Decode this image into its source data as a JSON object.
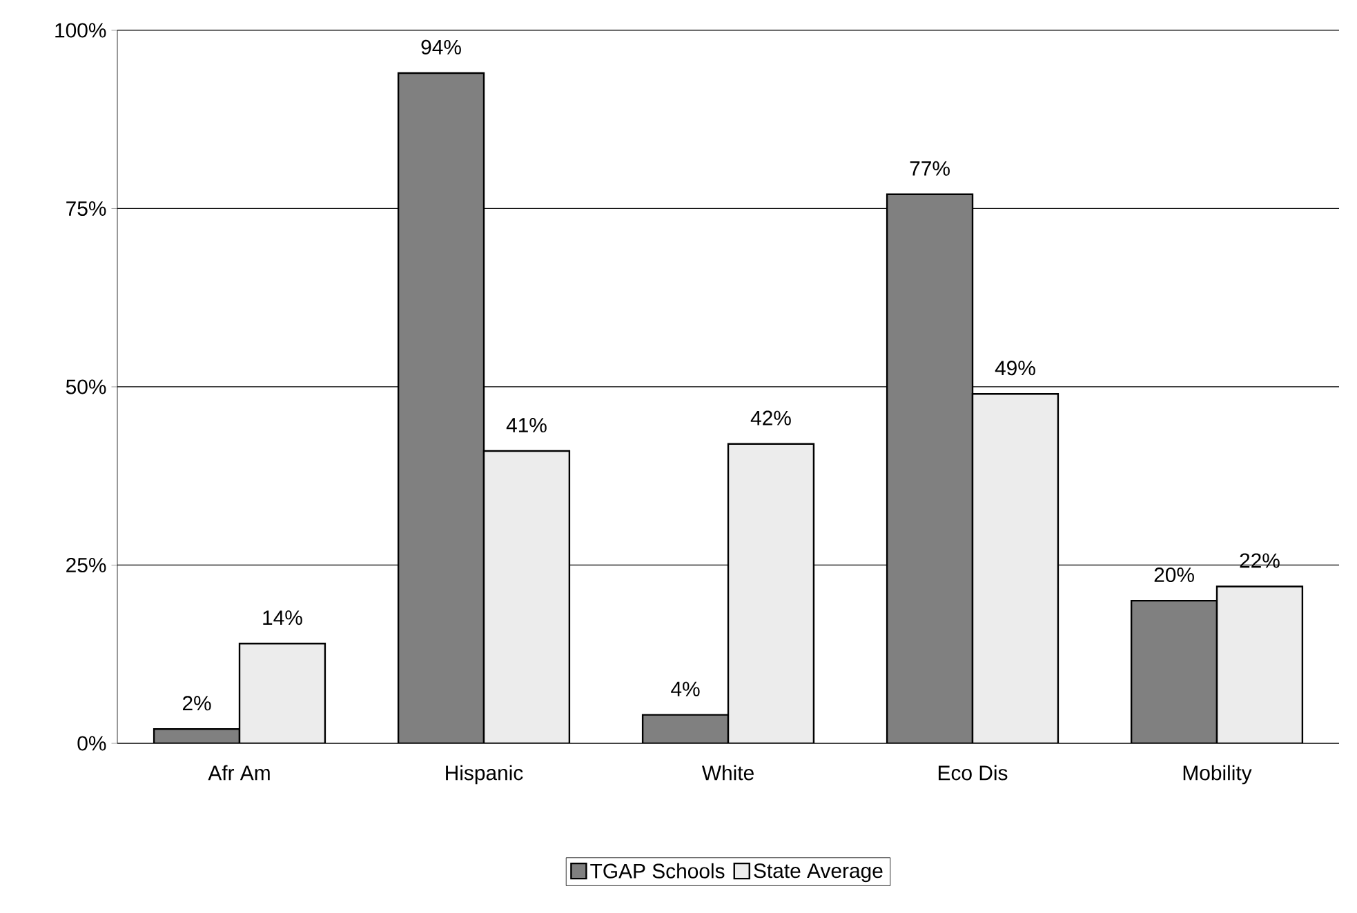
{
  "chart_data": {
    "type": "bar",
    "categories": [
      "Afr Am",
      "Hispanic",
      "White",
      "Eco Dis",
      "Mobility"
    ],
    "series": [
      {
        "name": "TGAP Schools",
        "color": "#808080",
        "values": [
          2,
          94,
          4,
          77,
          20
        ],
        "value_labels": [
          "2%",
          "94%",
          "4%",
          "77%",
          "20%"
        ]
      },
      {
        "name": "State Average",
        "color": "#ececec",
        "values": [
          14,
          41,
          42,
          49,
          22
        ],
        "value_labels": [
          "14%",
          "41%",
          "42%",
          "49%",
          "22%"
        ]
      }
    ],
    "ylim": [
      0,
      100
    ],
    "yticks": [
      {
        "value": 0,
        "label": "0%"
      },
      {
        "value": 25,
        "label": "25%"
      },
      {
        "value": 50,
        "label": "50%"
      },
      {
        "value": 75,
        "label": "75%"
      },
      {
        "value": 100,
        "label": "100%"
      }
    ],
    "grid": "y",
    "legend": "bottom"
  }
}
